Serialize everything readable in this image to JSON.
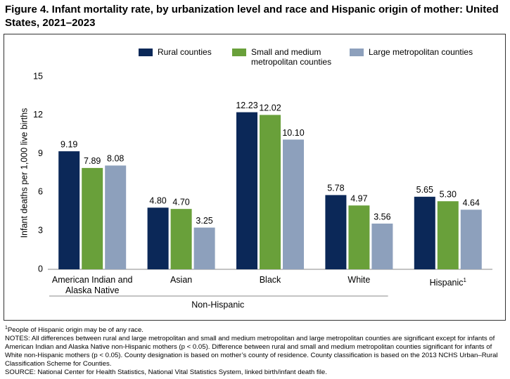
{
  "chart_data": {
    "type": "bar",
    "title": "Figure 4. Infant mortality rate, by urbanization level and race and Hispanic origin of mother: United States, 2021–2023",
    "ylabel": "Infant deaths per 1,000 live births",
    "categories": [
      "American Indian and Alaska Native",
      "Asian",
      "Black",
      "White",
      "Hispanic"
    ],
    "hispanic_footnote_mark": "1",
    "group_label": "Non-Hispanic",
    "ylim": [
      0,
      15
    ],
    "yticks": [
      0,
      3,
      6,
      9,
      12,
      15
    ],
    "grid": false,
    "series": [
      {
        "name": "Rural counties",
        "color": "#0b2858",
        "values": [
          9.19,
          4.8,
          12.23,
          5.78,
          5.65
        ],
        "value_labels": [
          "9.19",
          "4.80",
          "12.23",
          "5.78",
          "5.65"
        ]
      },
      {
        "name": "Small and medium metropolitan counties",
        "color": "#69a03a",
        "values": [
          7.89,
          4.7,
          12.02,
          4.97,
          5.3
        ],
        "value_labels": [
          "7.89",
          "4.70",
          "12.02",
          "4.97",
          "5.30"
        ]
      },
      {
        "name": "Large metropolitan counties",
        "color": "#8da0bc",
        "values": [
          8.08,
          3.25,
          10.1,
          3.56,
          4.64
        ],
        "value_labels": [
          "8.08",
          "3.25",
          "10.10",
          "3.56",
          "4.64"
        ]
      }
    ],
    "footnote_mark": "1",
    "footnote": "People of Hispanic origin may be of any race.",
    "notes": "NOTES: All differences between rural and large metropolitan and small and medium metropolitan and large metropolitan counties are significant except for infants of American Indian and Alaska Native non-Hispanic mothers (p < 0.05). Difference between rural and small and medium metropolitan counties significant for infants of White non-Hispanic mothers (p < 0.05). County designation is based on mother’s county of residence. County classification is based on the 2013 NCHS Urban–Rural Classification Scheme for Counties.",
    "source": "SOURCE: National Center for Health Statistics, National Vital Statistics System, linked birth/infant death file."
  }
}
